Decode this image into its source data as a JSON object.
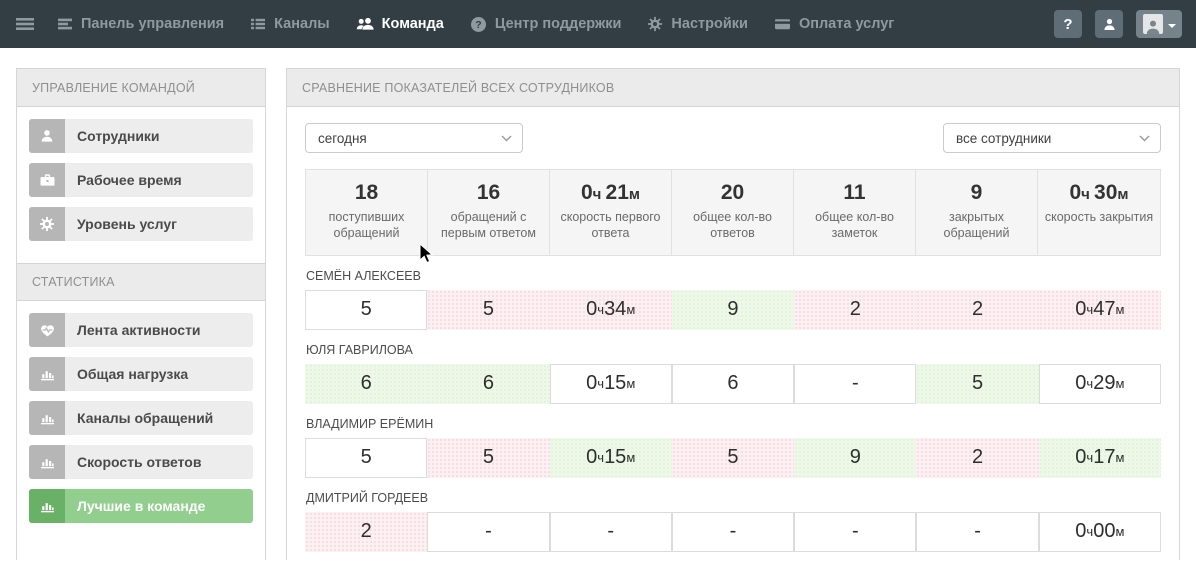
{
  "navbar": {
    "items": [
      {
        "id": "dashboard",
        "label": "Панель управления",
        "icon": "dashboard-icon",
        "active": false
      },
      {
        "id": "channels",
        "label": "Каналы",
        "icon": "channels-icon",
        "active": false
      },
      {
        "id": "team",
        "label": "Команда",
        "icon": "team-icon",
        "active": true
      },
      {
        "id": "support-center",
        "label": "Центр поддержки",
        "icon": "help-icon",
        "active": false
      },
      {
        "id": "settings",
        "label": "Настройки",
        "icon": "gear-icon",
        "active": false
      },
      {
        "id": "billing",
        "label": "Оплата услуг",
        "icon": "billing-icon",
        "active": false
      }
    ],
    "right": {
      "help_label": "?"
    }
  },
  "sidebar": {
    "sections": [
      {
        "title": "УПРАВЛЕНИЕ КОМАНДОЙ",
        "items": [
          {
            "id": "employees",
            "label": "Сотрудники",
            "icon": "user-icon",
            "active": false
          },
          {
            "id": "working-hours",
            "label": "Рабочее время",
            "icon": "briefcase-icon",
            "active": false
          },
          {
            "id": "service-level",
            "label": "Уровень услуг",
            "icon": "gear-icon",
            "active": false
          }
        ]
      },
      {
        "title": "СТАТИСТИКА",
        "items": [
          {
            "id": "activity-feed",
            "label": "Лента активности",
            "icon": "heart-pulse-icon",
            "active": false
          },
          {
            "id": "total-load",
            "label": "Общая нагрузка",
            "icon": "bar-chart-icon",
            "active": false
          },
          {
            "id": "request-channels",
            "label": "Каналы обращений",
            "icon": "bar-chart-icon",
            "active": false
          },
          {
            "id": "response-speed",
            "label": "Скорость ответов",
            "icon": "bar-chart-icon",
            "active": false
          },
          {
            "id": "team-best",
            "label": "Лучшие в команде",
            "icon": "bar-chart-icon",
            "active": true
          }
        ]
      }
    ]
  },
  "main": {
    "title": "СРАВНЕНИЕ ПОКАЗАТЕЛЕЙ ВСЕХ СОТРУДНИКОВ",
    "filters": {
      "period": "сегодня",
      "employees": "все сотрудники"
    },
    "summary": [
      {
        "value": "18",
        "label": "поступивших обращений"
      },
      {
        "value": "16",
        "label": "обращений с первым ответом"
      },
      {
        "value": "0ч 21м",
        "label": "скорость первого ответа",
        "time": true
      },
      {
        "value": "20",
        "label": "общее кол-во ответов"
      },
      {
        "value": "11",
        "label": "общее кол-во заметок"
      },
      {
        "value": "9",
        "label": "закрытых обращений"
      },
      {
        "value": "0ч 30м",
        "label": "скорость закрытия",
        "time": true
      }
    ],
    "employees": [
      {
        "name": "СЕМЁН АЛЕКСЕЕВ",
        "cells": [
          {
            "text": "5",
            "tone": "none"
          },
          {
            "text": "5",
            "tone": "bad"
          },
          {
            "text": "0ч 34м",
            "tone": "bad",
            "time": true
          },
          {
            "text": "9",
            "tone": "good"
          },
          {
            "text": "2",
            "tone": "bad"
          },
          {
            "text": "2",
            "tone": "bad"
          },
          {
            "text": "0ч 47м",
            "tone": "bad",
            "time": true
          }
        ]
      },
      {
        "name": "ЮЛЯ ГАВРИЛОВА",
        "cells": [
          {
            "text": "6",
            "tone": "good"
          },
          {
            "text": "6",
            "tone": "good"
          },
          {
            "text": "0ч 15м",
            "tone": "none",
            "time": true
          },
          {
            "text": "6",
            "tone": "none"
          },
          {
            "text": "-",
            "tone": "none"
          },
          {
            "text": "5",
            "tone": "good"
          },
          {
            "text": "0ч 29м",
            "tone": "none",
            "time": true
          }
        ]
      },
      {
        "name": "ВЛАДИМИР ЕРЁМИН",
        "cells": [
          {
            "text": "5",
            "tone": "none"
          },
          {
            "text": "5",
            "tone": "bad"
          },
          {
            "text": "0ч 15м",
            "tone": "good",
            "time": true
          },
          {
            "text": "5",
            "tone": "bad"
          },
          {
            "text": "9",
            "tone": "good"
          },
          {
            "text": "2",
            "tone": "bad"
          },
          {
            "text": "0ч 17м",
            "tone": "good",
            "time": true
          }
        ]
      },
      {
        "name": "ДМИТРИЙ ГОРДЕЕВ",
        "cells": [
          {
            "text": "2",
            "tone": "bad"
          },
          {
            "text": "-",
            "tone": "none"
          },
          {
            "text": "-",
            "tone": "none"
          },
          {
            "text": "-",
            "tone": "none"
          },
          {
            "text": "-",
            "tone": "none"
          },
          {
            "text": "-",
            "tone": "none"
          },
          {
            "text": "0ч 00м",
            "tone": "none",
            "time": true
          }
        ]
      }
    ]
  },
  "colors": {
    "navbar_bg": "#323d44",
    "accent_green": "#92ce8d",
    "accent_green_dark": "#68b166",
    "cell_good_bg": "#edf8e8",
    "cell_bad_bg": "#fcf0f3",
    "panel_header_bg": "#ebebeb",
    "summary_bg": "#f5f5f5"
  }
}
